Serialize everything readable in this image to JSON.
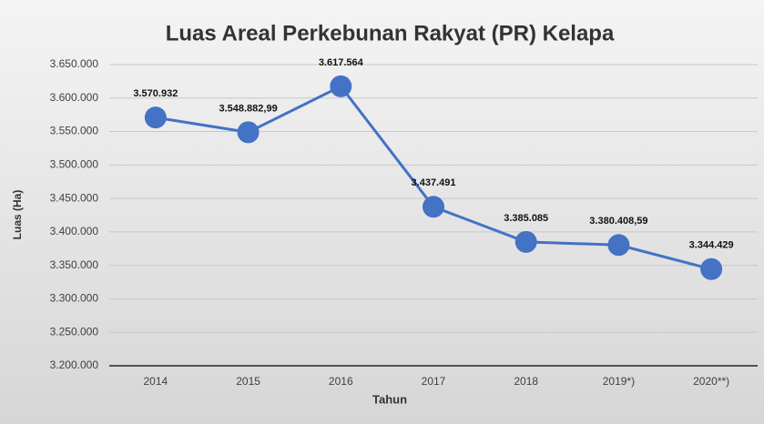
{
  "chart_data": {
    "type": "line",
    "title": "Luas Areal Perkebunan Rakyat (PR) Kelapa",
    "x_label": "Tahun",
    "y_label": "Luas (Ha)",
    "categories": [
      "2014",
      "2015",
      "2016",
      "2017",
      "2018",
      "2019*)",
      "2020**)"
    ],
    "values": [
      3570932,
      3548882.99,
      3617564,
      3437491,
      3385085,
      3380408.59,
      3344429
    ],
    "value_labels": [
      "3.570.932",
      "3.548.882,99",
      "3.617.564",
      "3.437.491",
      "3.385.085",
      "3.380.408,59",
      "3.344.429"
    ],
    "color": "#4472c4",
    "ylim": [
      3200000,
      3650000
    ],
    "yticks": [
      {
        "value": 3200000,
        "label": "3.200.000"
      },
      {
        "value": 3250000,
        "label": "3.250.000"
      },
      {
        "value": 3300000,
        "label": "3.300.000"
      },
      {
        "value": 3350000,
        "label": "3.350.000"
      },
      {
        "value": 3400000,
        "label": "3.400.000"
      },
      {
        "value": 3450000,
        "label": "3.450.000"
      },
      {
        "value": 3500000,
        "label": "3.500.000"
      },
      {
        "value": 3550000,
        "label": "3.550.000"
      },
      {
        "value": 3600000,
        "label": "3.600.000"
      },
      {
        "value": 3650000,
        "label": "3.650.000"
      }
    ],
    "grid": true
  }
}
